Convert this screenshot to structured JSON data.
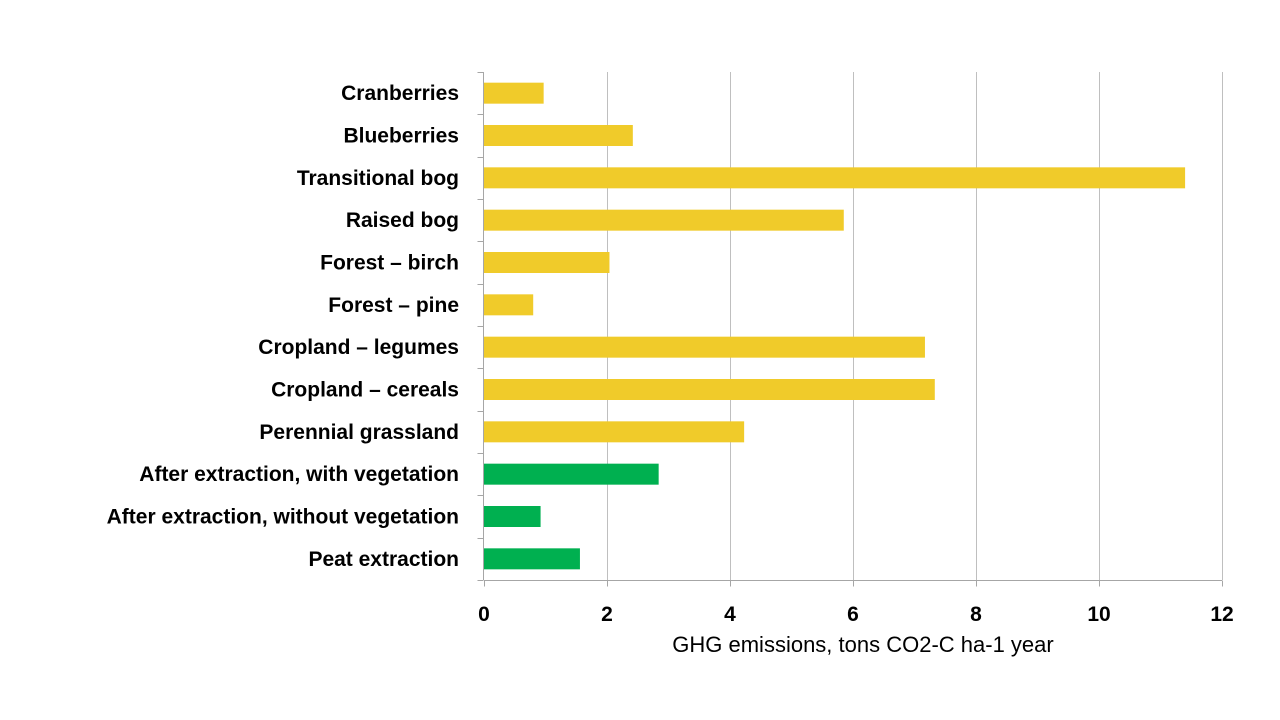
{
  "chart_data": {
    "type": "bar",
    "orientation": "horizontal",
    "categories": [
      "Cranberries",
      "Blueberries",
      "Transitional bog",
      "Raised bog",
      "Forest – birch",
      "Forest – pine",
      "Cropland – legumes",
      "Cropland – cereals",
      "Perennial grassland",
      "After extraction, with vegetation",
      "After extraction, without vegetation",
      "Peat extraction"
    ],
    "values": [
      0.97,
      2.42,
      11.4,
      5.85,
      2.04,
      0.8,
      7.17,
      7.33,
      4.23,
      2.84,
      0.92,
      1.56
    ],
    "colors": [
      "#F0CB2A",
      "#F0CB2A",
      "#F0CB2A",
      "#F0CB2A",
      "#F0CB2A",
      "#F0CB2A",
      "#F0CB2A",
      "#F0CB2A",
      "#F0CB2A",
      "#00B050",
      "#00B050",
      "#00B050"
    ],
    "xlabel": "GHG emissions, tons CO2-C ha-1 year",
    "ylabel": "",
    "title": "",
    "xlim": [
      0,
      12
    ],
    "xticks": [
      "0",
      "2",
      "4",
      "6",
      "8",
      "10",
      "12"
    ],
    "xtick_values": [
      0,
      2,
      4,
      6,
      8,
      10,
      12
    ],
    "grid": "vertical",
    "legend": "none"
  }
}
